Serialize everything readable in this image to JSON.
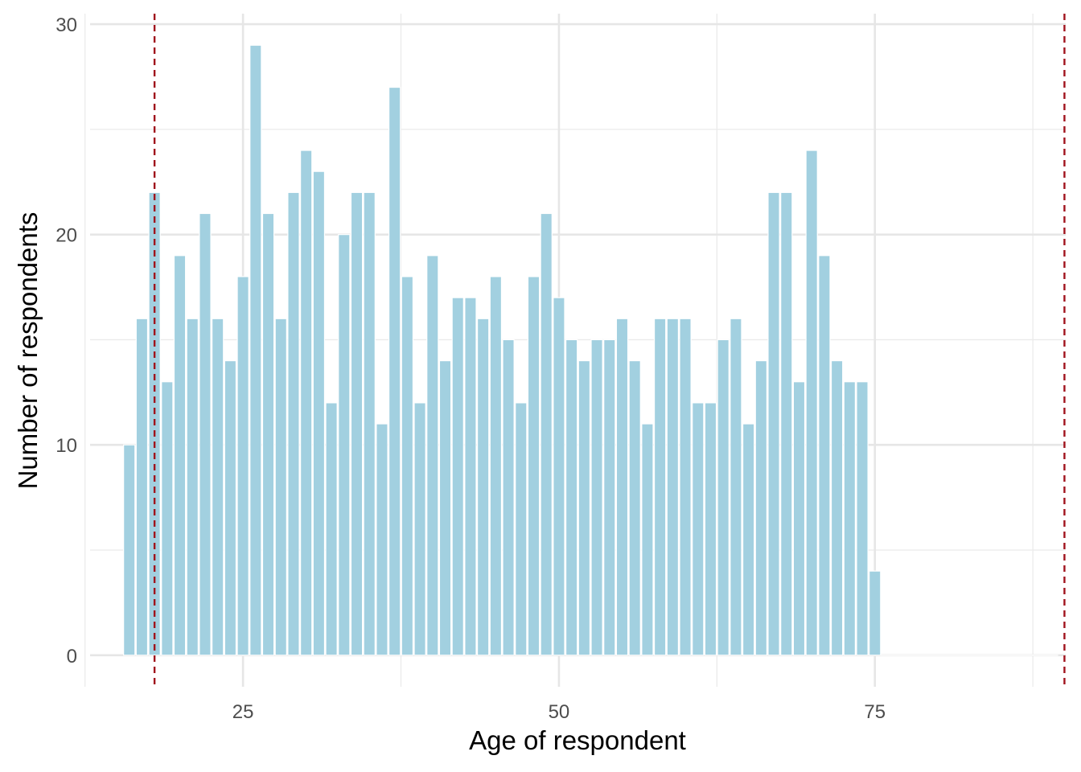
{
  "chart_data": {
    "type": "bar",
    "xlabel": "Age of respondent",
    "ylabel": "Number of respondents",
    "xlim": [
      12.9,
      90.1
    ],
    "ylim": [
      -1.5,
      30.5
    ],
    "x_ticks": [
      25,
      50,
      75
    ],
    "y_ticks": [
      0,
      10,
      20,
      30
    ],
    "x_minor_gridlines": [
      12.5,
      37.5,
      62.5,
      87.5
    ],
    "y_minor_gridlines": [
      5,
      15,
      25
    ],
    "grid": true,
    "bar_width": 0.9,
    "bar_color": "#a2d0e0",
    "bar_outline": "#ffffff",
    "reference_lines": [
      {
        "x": 18,
        "color": "#a0131c",
        "style": "dashed"
      },
      {
        "x": 90,
        "color": "#a0131c",
        "style": "dashed"
      }
    ],
    "x": [
      16,
      17,
      18,
      19,
      20,
      21,
      22,
      23,
      24,
      25,
      26,
      27,
      28,
      29,
      30,
      31,
      32,
      33,
      34,
      35,
      36,
      37,
      38,
      39,
      40,
      41,
      42,
      43,
      44,
      45,
      46,
      47,
      48,
      49,
      50,
      51,
      52,
      53,
      54,
      55,
      56,
      57,
      58,
      59,
      60,
      61,
      62,
      63,
      64,
      65,
      66,
      67,
      68,
      69,
      70,
      71,
      72,
      73,
      74,
      75
    ],
    "values": [
      10,
      16,
      22,
      13,
      19,
      16,
      21,
      16,
      14,
      18,
      29,
      21,
      16,
      22,
      24,
      23,
      12,
      20,
      22,
      22,
      11,
      27,
      18,
      12,
      19,
      14,
      17,
      17,
      16,
      18,
      15,
      12,
      18,
      21,
      17,
      15,
      14,
      15,
      15,
      16,
      14,
      11,
      16,
      16,
      16,
      12,
      12,
      15,
      16,
      11,
      14,
      22,
      22,
      13,
      24,
      19,
      14,
      13,
      13,
      4
    ]
  }
}
